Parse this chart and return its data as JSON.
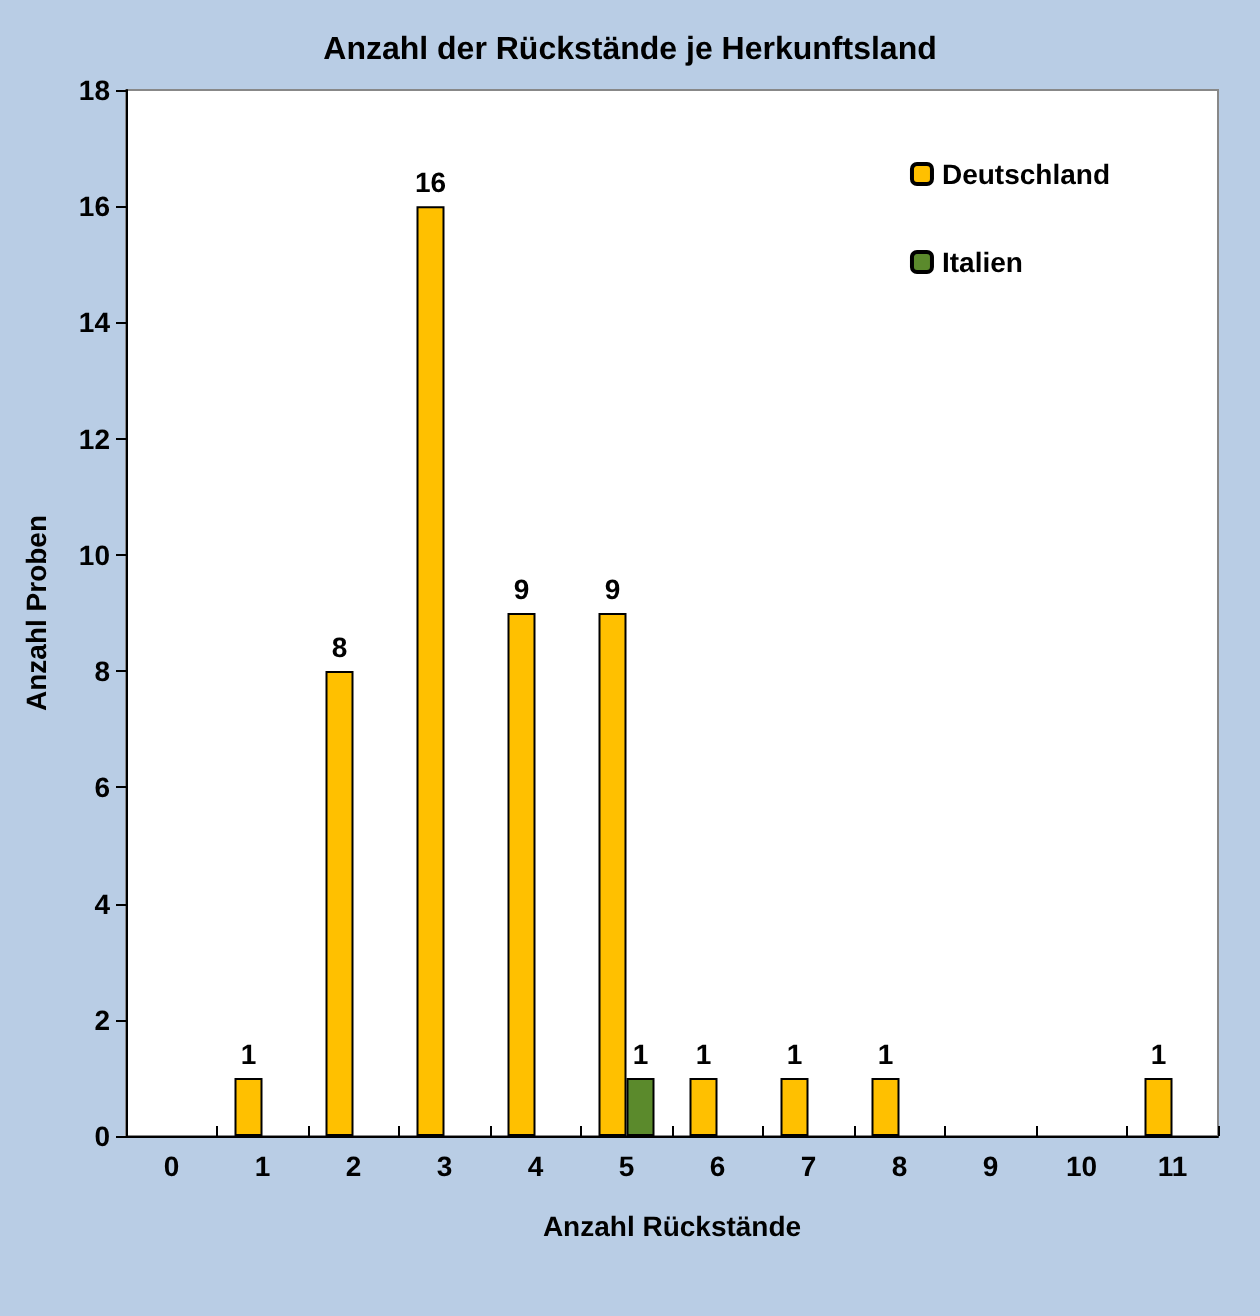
{
  "chart_data": {
    "type": "bar",
    "title": "Anzahl der Rückstände je Herkunftsland",
    "xlabel": "Anzahl Rückstände",
    "ylabel": "Anzahl Proben",
    "categories": [
      "0",
      "1",
      "2",
      "3",
      "4",
      "5",
      "6",
      "7",
      "8",
      "9",
      "10",
      "11"
    ],
    "series": [
      {
        "name": "Deutschland",
        "color": "#ffc000",
        "values": [
          null,
          1,
          8,
          16,
          9,
          9,
          1,
          1,
          1,
          null,
          null,
          1
        ]
      },
      {
        "name": "Italien",
        "color": "#5b8a2c",
        "values": [
          null,
          null,
          null,
          null,
          null,
          1,
          null,
          null,
          null,
          null,
          null,
          null
        ]
      }
    ],
    "ylim": [
      0,
      18
    ],
    "yticks": [
      0,
      2,
      4,
      6,
      8,
      10,
      12,
      14,
      16,
      18
    ],
    "grid": false,
    "legend": "top right",
    "data_labels": true
  }
}
